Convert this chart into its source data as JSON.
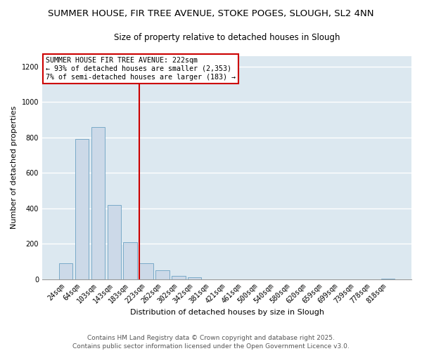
{
  "title": "SUMMER HOUSE, FIR TREE AVENUE, STOKE POGES, SLOUGH, SL2 4NN",
  "subtitle": "Size of property relative to detached houses in Slough",
  "xlabel": "Distribution of detached houses by size in Slough",
  "ylabel": "Number of detached properties",
  "bar_color": "#ccd9e8",
  "bar_edge_color": "#7aaac8",
  "categories": [
    "24sqm",
    "64sqm",
    "103sqm",
    "143sqm",
    "183sqm",
    "223sqm",
    "262sqm",
    "302sqm",
    "342sqm",
    "381sqm",
    "421sqm",
    "461sqm",
    "500sqm",
    "540sqm",
    "580sqm",
    "620sqm",
    "659sqm",
    "699sqm",
    "739sqm",
    "778sqm",
    "818sqm"
  ],
  "values": [
    90,
    790,
    860,
    420,
    210,
    90,
    50,
    20,
    10,
    0,
    0,
    0,
    0,
    0,
    0,
    0,
    0,
    0,
    0,
    0,
    4
  ],
  "vline_index": 5,
  "vline_color": "#cc0000",
  "ylim": [
    0,
    1260
  ],
  "yticks": [
    0,
    200,
    400,
    600,
    800,
    1000,
    1200
  ],
  "annotation_title": "SUMMER HOUSE FIR TREE AVENUE: 222sqm",
  "annotation_line1": "← 93% of detached houses are smaller (2,353)",
  "annotation_line2": "7% of semi-detached houses are larger (183) →",
  "footer1": "Contains HM Land Registry data © Crown copyright and database right 2025.",
  "footer2": "Contains public sector information licensed under the Open Government Licence v3.0.",
  "fig_bg_color": "#ffffff",
  "plot_bg_color": "#dce8f0",
  "grid_color": "#ffffff",
  "title_fontsize": 9.5,
  "subtitle_fontsize": 8.5,
  "annotation_box_edge_color": "#cc0000",
  "footer_fontsize": 6.5,
  "axis_label_fontsize": 8,
  "tick_fontsize": 7
}
